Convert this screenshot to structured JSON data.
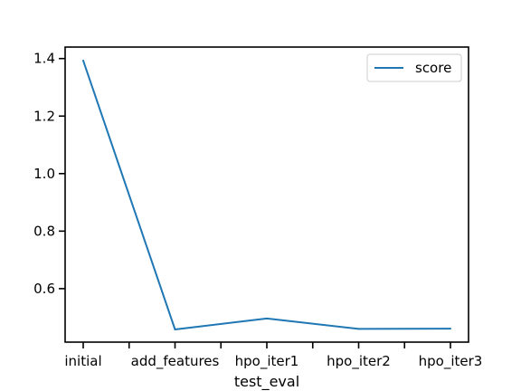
{
  "chart_data": {
    "type": "line",
    "categories": [
      "initial",
      "add_features",
      "hpo_iter1",
      "hpo_iter2",
      "hpo_iter3"
    ],
    "series": [
      {
        "name": "score",
        "values": [
          1.393,
          0.458,
          0.496,
          0.46,
          0.461
        ],
        "color": "#1f77b4"
      }
    ],
    "xlabel": "test_eval",
    "ylabel": "",
    "ylim": [
      0.414,
      1.44
    ],
    "yticks": [
      0.6,
      0.8,
      1.0,
      1.2,
      1.4
    ],
    "ytick_labels": [
      "0.6",
      "0.8",
      "1.0",
      "1.2",
      "1.4"
    ],
    "grid": false,
    "legend": {
      "placement": "upper right",
      "entries": [
        "score"
      ]
    }
  }
}
